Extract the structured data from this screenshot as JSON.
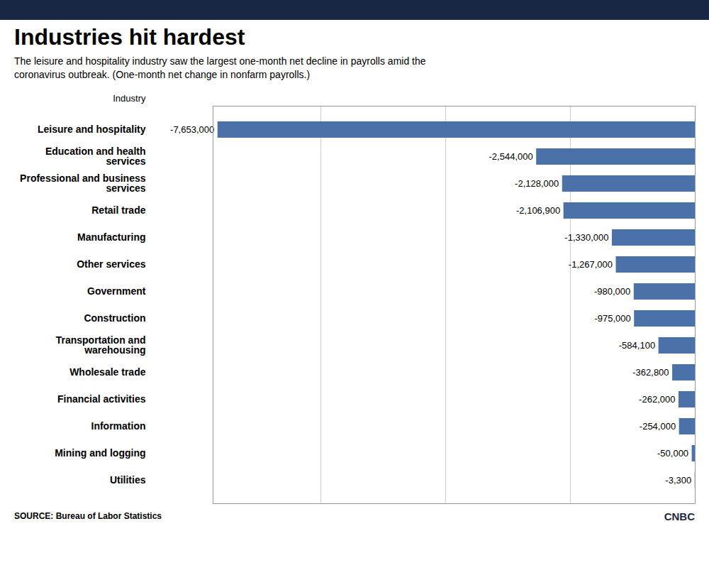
{
  "chart_data": {
    "type": "bar",
    "orientation": "horizontal",
    "title": "Industries hit hardest",
    "subtitle": "The leisure and hospitality industry saw the largest one-month net decline in payrolls amid the\ncoronavirus outbreak. (One-month net change in nonfarm payrolls.)",
    "ylabel": "Industry",
    "source": "SOURCE: Bureau of Labor Statistics",
    "annotations": [
      "CNBC"
    ],
    "categories": [
      "Leisure and hospitality",
      "Education and health\nservices",
      "Professional and business\nservices",
      "Retail trade",
      "Manufacturing",
      "Other services",
      "Government",
      "Construction",
      "Transportation and\nwarehousing",
      "Wholesale trade",
      "Financial activities",
      "Information",
      "Mining and logging",
      "Utilities"
    ],
    "values": [
      -7653000,
      -2544000,
      -2128000,
      -2106900,
      -1330000,
      -1267000,
      -980000,
      -975000,
      -584100,
      -362800,
      -262000,
      -254000,
      -50000,
      -3300
    ],
    "value_labels": [
      "-7,653,000",
      "-2,544,000",
      "-2,128,000",
      "-2,106,900",
      "-1,330,000",
      "-1,267,000",
      "-980,000",
      "-975,000",
      "-584,100",
      "-362,800",
      "-262,000",
      "-254,000",
      "-50,000",
      "-3,300"
    ],
    "color": "#4a72a8",
    "xlim": [
      -7729530,
      0
    ],
    "xticks": [
      -6000000,
      -4000000,
      -2000000,
      0
    ],
    "grid": true,
    "data_labels": true,
    "tick_labels": "y"
  }
}
